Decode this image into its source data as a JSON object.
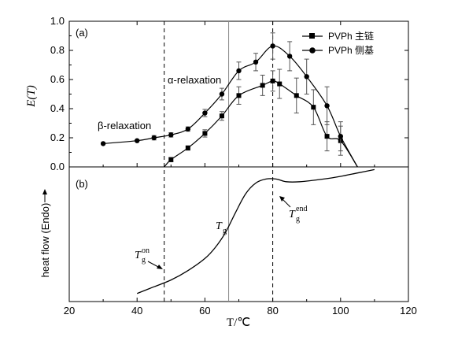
{
  "chart_data": [
    {
      "type": "line",
      "panel_label": "(a)",
      "ylabel": "E(T)",
      "ylim": [
        0,
        1.0
      ],
      "yticks": [
        "0.0",
        "0.2",
        "0.4",
        "0.6",
        "0.8",
        "1.0"
      ],
      "xlim": [
        20,
        120
      ],
      "series": [
        {
          "name": "PVPh 主链",
          "marker": "square",
          "points": [
            {
              "x": 48,
              "y": 0.0,
              "err": 0.0
            },
            {
              "x": 50,
              "y": 0.05,
              "err": 0.015
            },
            {
              "x": 55,
              "y": 0.13,
              "err": 0.015
            },
            {
              "x": 60,
              "y": 0.23,
              "err": 0.025
            },
            {
              "x": 65,
              "y": 0.35,
              "err": 0.03
            },
            {
              "x": 70,
              "y": 0.49,
              "err": 0.06
            },
            {
              "x": 77,
              "y": 0.56,
              "err": 0.07
            },
            {
              "x": 80,
              "y": 0.59,
              "err": 0.07
            },
            {
              "x": 82,
              "y": 0.57,
              "err": 0.1
            },
            {
              "x": 87,
              "y": 0.49,
              "err": 0.12
            },
            {
              "x": 92,
              "y": 0.41,
              "err": 0.12
            },
            {
              "x": 96,
              "y": 0.21,
              "err": 0.1
            },
            {
              "x": 100,
              "y": 0.18,
              "err": 0.1
            },
            {
              "x": 105,
              "y": 0.0,
              "err": 0.0
            }
          ]
        },
        {
          "name": "PVPh 侧基",
          "marker": "circle",
          "points": [
            {
              "x": 30,
              "y": 0.16,
              "err": 0.0
            },
            {
              "x": 40,
              "y": 0.18,
              "err": 0.0
            },
            {
              "x": 45,
              "y": 0.2,
              "err": 0.015
            },
            {
              "x": 50,
              "y": 0.22,
              "err": 0.015
            },
            {
              "x": 55,
              "y": 0.26,
              "err": 0.015
            },
            {
              "x": 60,
              "y": 0.37,
              "err": 0.025
            },
            {
              "x": 65,
              "y": 0.5,
              "err": 0.04
            },
            {
              "x": 70,
              "y": 0.66,
              "err": 0.06
            },
            {
              "x": 75,
              "y": 0.72,
              "err": 0.06
            },
            {
              "x": 80,
              "y": 0.83,
              "err": 0.09
            },
            {
              "x": 85,
              "y": 0.76,
              "err": 0.1
            },
            {
              "x": 90,
              "y": 0.62,
              "err": 0.12
            },
            {
              "x": 96,
              "y": 0.42,
              "err": 0.13
            },
            {
              "x": 100,
              "y": 0.21,
              "err": 0.1
            },
            {
              "x": 105,
              "y": 0.0,
              "err": 0.0
            }
          ]
        }
      ],
      "annotations": [
        "β-relaxation",
        "α-relaxation"
      ]
    },
    {
      "type": "line",
      "panel_label": "(b)",
      "ylabel": "heat flow (Endo)",
      "xlabel": "T/℃",
      "xlim": [
        20,
        120
      ],
      "xticks": [
        "20",
        "40",
        "60",
        "80",
        "100",
        "120"
      ],
      "curve": [
        {
          "x": 40,
          "y": 0.06
        },
        {
          "x": 45,
          "y": 0.11
        },
        {
          "x": 50,
          "y": 0.16
        },
        {
          "x": 55,
          "y": 0.23
        },
        {
          "x": 60,
          "y": 0.32
        },
        {
          "x": 63,
          "y": 0.4
        },
        {
          "x": 66,
          "y": 0.51
        },
        {
          "x": 69,
          "y": 0.66
        },
        {
          "x": 72,
          "y": 0.8
        },
        {
          "x": 75,
          "y": 0.88
        },
        {
          "x": 78,
          "y": 0.91
        },
        {
          "x": 81,
          "y": 0.91
        },
        {
          "x": 84,
          "y": 0.89
        },
        {
          "x": 88,
          "y": 0.89
        },
        {
          "x": 95,
          "y": 0.91
        },
        {
          "x": 100,
          "y": 0.93
        },
        {
          "x": 105,
          "y": 0.955
        },
        {
          "x": 110,
          "y": 0.98
        }
      ],
      "annotations": [
        {
          "base": "T",
          "sub": "g",
          "sup": "on"
        },
        {
          "base": "T",
          "sub": "g",
          "sup": ""
        },
        {
          "base": "T",
          "sub": "g",
          "sup": "end"
        }
      ]
    }
  ],
  "reference_lines": [
    {
      "x": 48,
      "style": "dashed"
    },
    {
      "x": 67,
      "style": "solid"
    },
    {
      "x": 80,
      "style": "dashed"
    }
  ]
}
